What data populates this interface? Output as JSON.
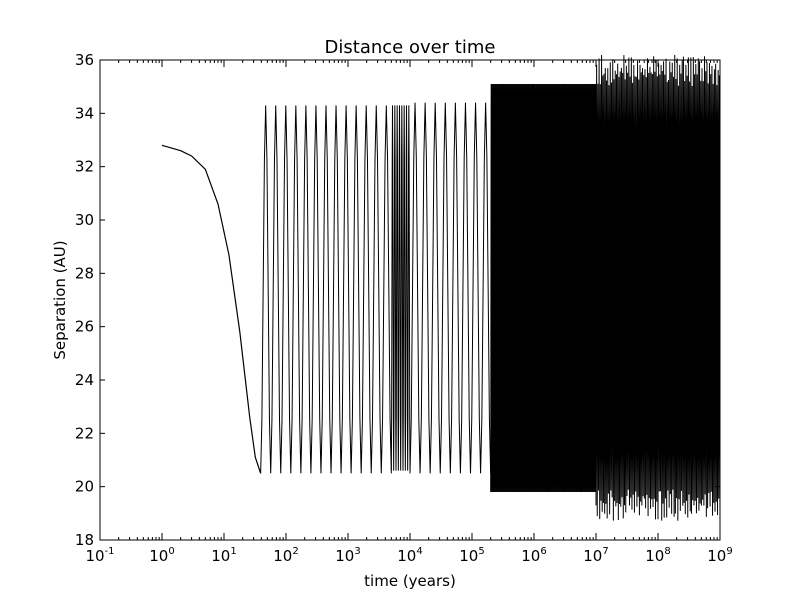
{
  "chart_data": {
    "type": "line",
    "title": "Distance over time",
    "xlabel": "time (years)",
    "ylabel": "Separation (AU)",
    "xscale": "log",
    "xlim": [
      0.1,
      1000000000
    ],
    "ylim": [
      18,
      36
    ],
    "grid": false,
    "xticks": [
      {
        "base": "10",
        "exp": "-1"
      },
      {
        "base": "10",
        "exp": "0"
      },
      {
        "base": "10",
        "exp": "1"
      },
      {
        "base": "10",
        "exp": "2"
      },
      {
        "base": "10",
        "exp": "3"
      },
      {
        "base": "10",
        "exp": "4"
      },
      {
        "base": "10",
        "exp": "5"
      },
      {
        "base": "10",
        "exp": "6"
      },
      {
        "base": "10",
        "exp": "7"
      },
      {
        "base": "10",
        "exp": "8"
      },
      {
        "base": "10",
        "exp": "9"
      }
    ],
    "yticks": [
      "18",
      "20",
      "22",
      "24",
      "26",
      "28",
      "30",
      "32",
      "34",
      "36"
    ],
    "series": [
      {
        "color": "#000000",
        "start": {
          "x": 1,
          "y": 32.8
        },
        "initial_decay": [
          {
            "x": 1,
            "y": 32.8
          },
          {
            "x": 2,
            "y": 32.6
          },
          {
            "x": 3,
            "y": 32.4
          },
          {
            "x": 5,
            "y": 31.9
          },
          {
            "x": 8,
            "y": 30.6
          },
          {
            "x": 12,
            "y": 28.7
          },
          {
            "x": 18,
            "y": 25.8
          },
          {
            "x": 26,
            "y": 22.6
          },
          {
            "x": 32,
            "y": 21.1
          },
          {
            "x": 39,
            "y": 20.5
          }
        ],
        "oscillation_segments": [
          {
            "x_start": 39,
            "x_end": 5000,
            "y_min": 20.5,
            "y_max": 34.3,
            "density": "sparse-to-dense"
          },
          {
            "x_start": 5000,
            "x_end": 10000,
            "y_min": 20.6,
            "y_max": 34.3,
            "density": "dense"
          },
          {
            "x_start": 10000,
            "x_end": 200000,
            "y_min": 20.5,
            "y_max": 34.4,
            "density": "sparse-to-dense"
          },
          {
            "x_start": 200000,
            "x_end": 10000000,
            "y_min": 19.8,
            "y_max": 35.1,
            "density": "very dense"
          },
          {
            "x_start": 10000000,
            "x_end": 1000000000,
            "y_min": 19.3,
            "y_max": 35.6,
            "density": "dense, noisy"
          }
        ]
      }
    ]
  }
}
